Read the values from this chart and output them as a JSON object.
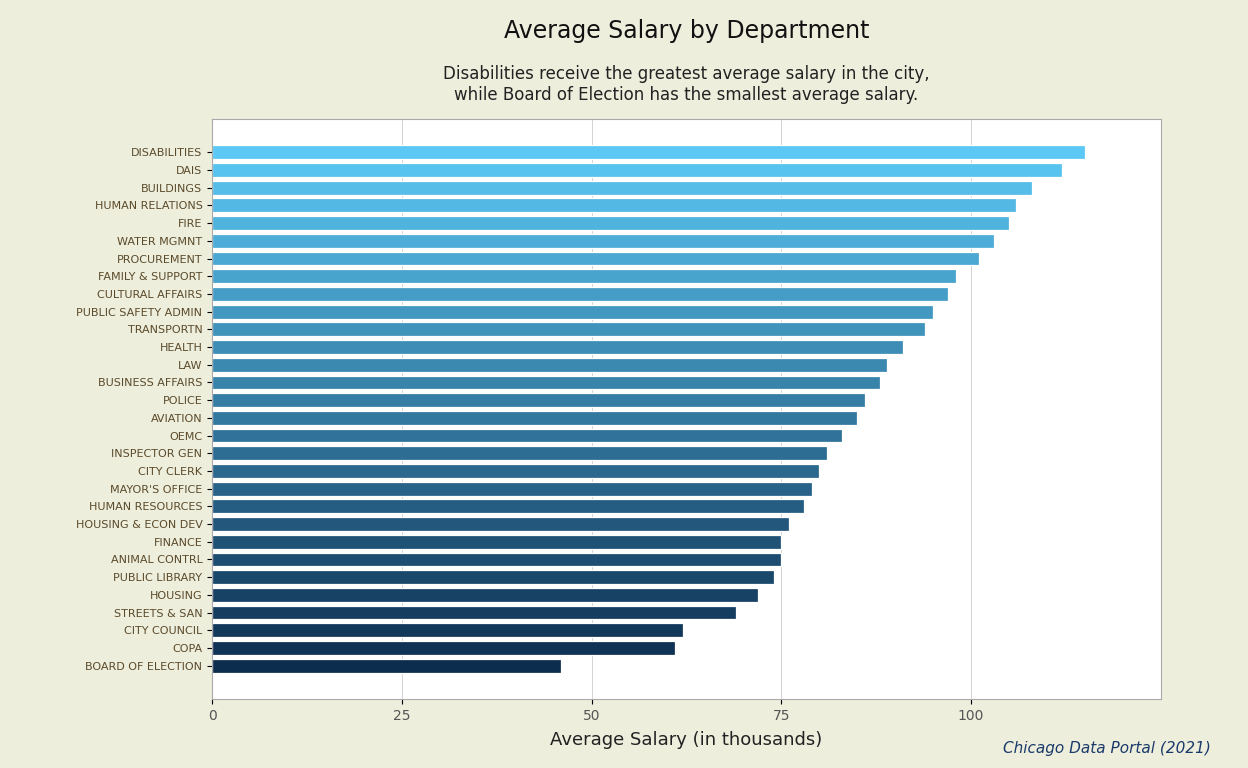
{
  "title": "Average Salary by Department",
  "subtitle": "Disabilities receive the greatest average salary in the city,\nwhile Board of Election has the smallest average salary.",
  "xlabel": "Average Salary (in thousands)",
  "source": "Chicago Data Portal (2021)",
  "background_color": "#eeeedd",
  "categories": [
    "DISABILITIES",
    "DAIS",
    "BUILDINGS",
    "HUMAN RELATIONS",
    "FIRE",
    "WATER MGMNT",
    "PROCUREMENT",
    "FAMILY & SUPPORT",
    "CULTURAL AFFAIRS",
    "PUBLIC SAFETY ADMIN",
    "TRANSPORTN",
    "HEALTH",
    "LAW",
    "BUSINESS AFFAIRS",
    "POLICE",
    "AVIATION",
    "OEMC",
    "INSPECTOR GEN",
    "CITY CLERK",
    "MAYOR'S OFFICE",
    "HUMAN RESOURCES",
    "HOUSING & ECON DEV",
    "FINANCE",
    "ANIMAL CONTRL",
    "PUBLIC LIBRARY",
    "HOUSING",
    "STREETS & SAN",
    "CITY COUNCIL",
    "COPA",
    "BOARD OF ELECTION"
  ],
  "values": [
    115,
    112,
    108,
    106,
    105,
    103,
    101,
    98,
    97,
    95,
    94,
    91,
    89,
    88,
    86,
    85,
    83,
    81,
    80,
    79,
    78,
    76,
    75,
    75,
    74,
    72,
    69,
    62,
    61,
    46
  ],
  "xlim": [
    0,
    125
  ],
  "xticks": [
    0,
    25,
    50,
    75,
    100
  ],
  "color_top": "#5bc8f5",
  "color_bottom": "#0d2d4e",
  "title_fontsize": 17,
  "subtitle_fontsize": 12,
  "label_fontsize": 8,
  "xlabel_fontsize": 13,
  "tick_fontsize": 10,
  "source_fontsize": 11
}
